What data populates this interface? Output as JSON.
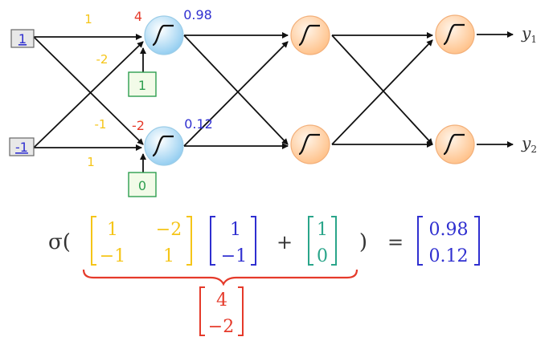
{
  "inputs": {
    "x1": "1",
    "x2": "-1"
  },
  "weights": {
    "w11": "1",
    "w21": "-2",
    "w12": "-1",
    "w22": "1"
  },
  "biases": {
    "b1": "1",
    "b2": "0"
  },
  "pre_activations": {
    "z1": "4",
    "z2": "-2"
  },
  "activations": {
    "a1": "0.98",
    "a2": "0.12"
  },
  "outputs": {
    "y1": "y",
    "y1_sub": "1",
    "y2": "y",
    "y2_sub": "2"
  },
  "equation": {
    "sigma": "σ(",
    "close_paren": ")",
    "plus": "+",
    "equals": "=",
    "W": [
      [
        "1",
        "−2"
      ],
      [
        "−1",
        "1"
      ]
    ],
    "x": [
      "1",
      "−1"
    ],
    "b": [
      "1",
      "0"
    ],
    "result": [
      "0.98",
      "0.12"
    ],
    "z": [
      "4",
      "−2"
    ]
  },
  "colors": {
    "weight": "#f5c518",
    "bias": "#2e9e4f",
    "input": "#2f2fd0",
    "preact": "#e53a2a",
    "activation": "#2f2fd0",
    "neuron_layer1": "#bfe4f7",
    "neuron_hidden": "#ffd4a8",
    "brace": "#e53a2a",
    "bias_matrix": "#2aa58a"
  }
}
